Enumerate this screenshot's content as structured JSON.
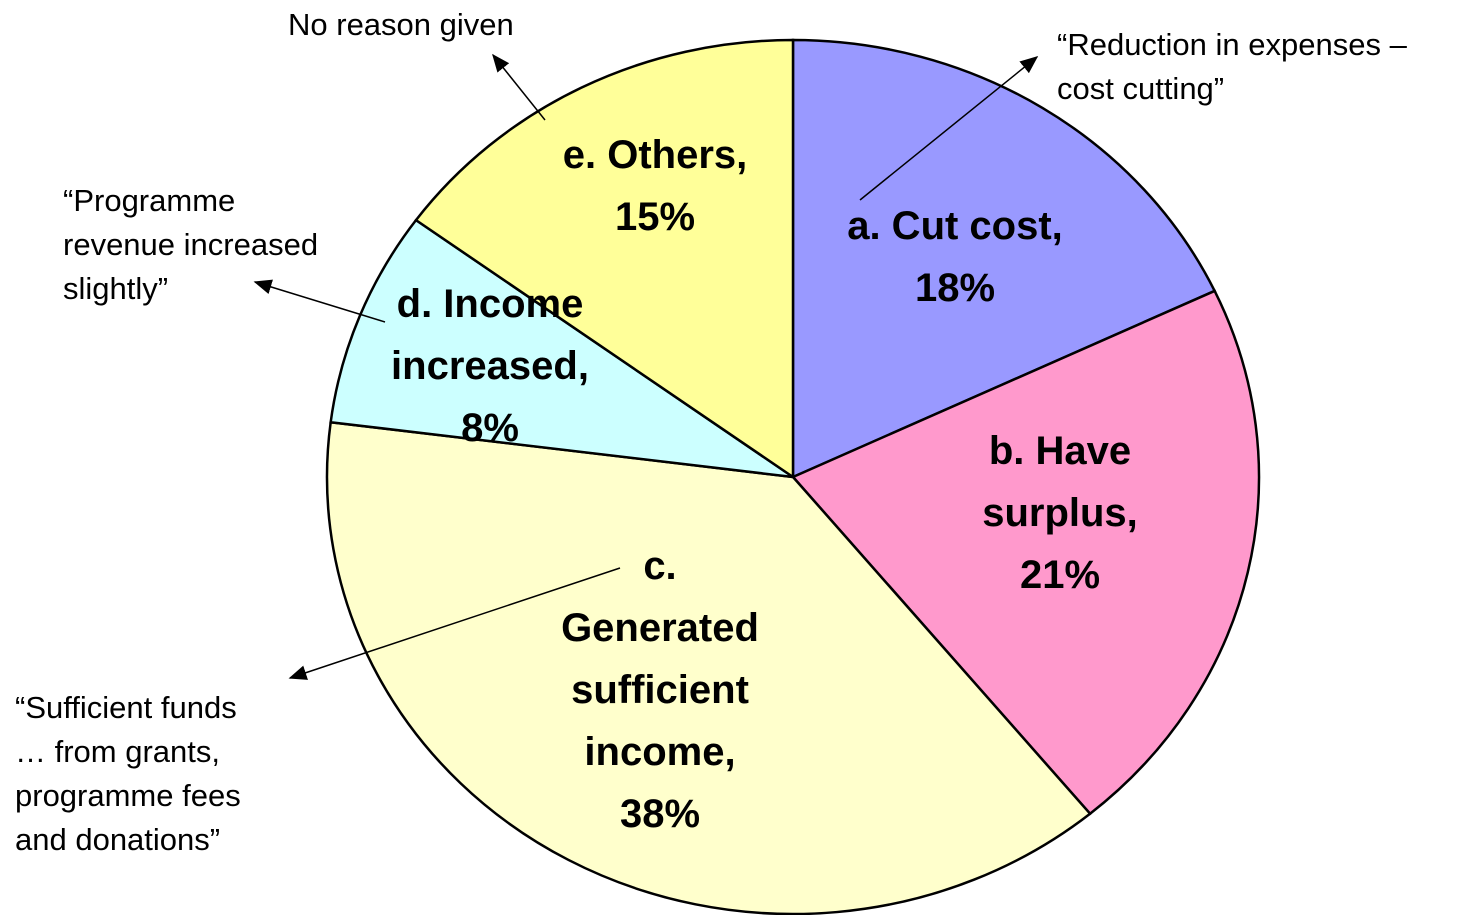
{
  "chart_data": {
    "type": "pie",
    "categories": [
      "a. Cut cost,",
      "b. Have\nsurplus,",
      "c.\nGenerated\nsufficient\nincome,",
      "d. Income\nincreased,",
      "e. Others,"
    ],
    "values": [
      18,
      21,
      38,
      8,
      15
    ],
    "value_labels": [
      "18%",
      "21%",
      "38%",
      "8%",
      "15%"
    ],
    "colors": [
      "#9999ff",
      "#ff99cc",
      "#ffffcc",
      "#ccffff",
      "#ffff99"
    ],
    "annotations": [
      {
        "text": "“Reduction in expenses –\ncost cutting”"
      },
      {
        "text": "“Sufficient funds\n… from grants,\nprogramme fees\nand donations”"
      },
      {
        "text": "“Programme\nrevenue increased\nslightly”"
      },
      {
        "text": "No reason given"
      }
    ]
  }
}
